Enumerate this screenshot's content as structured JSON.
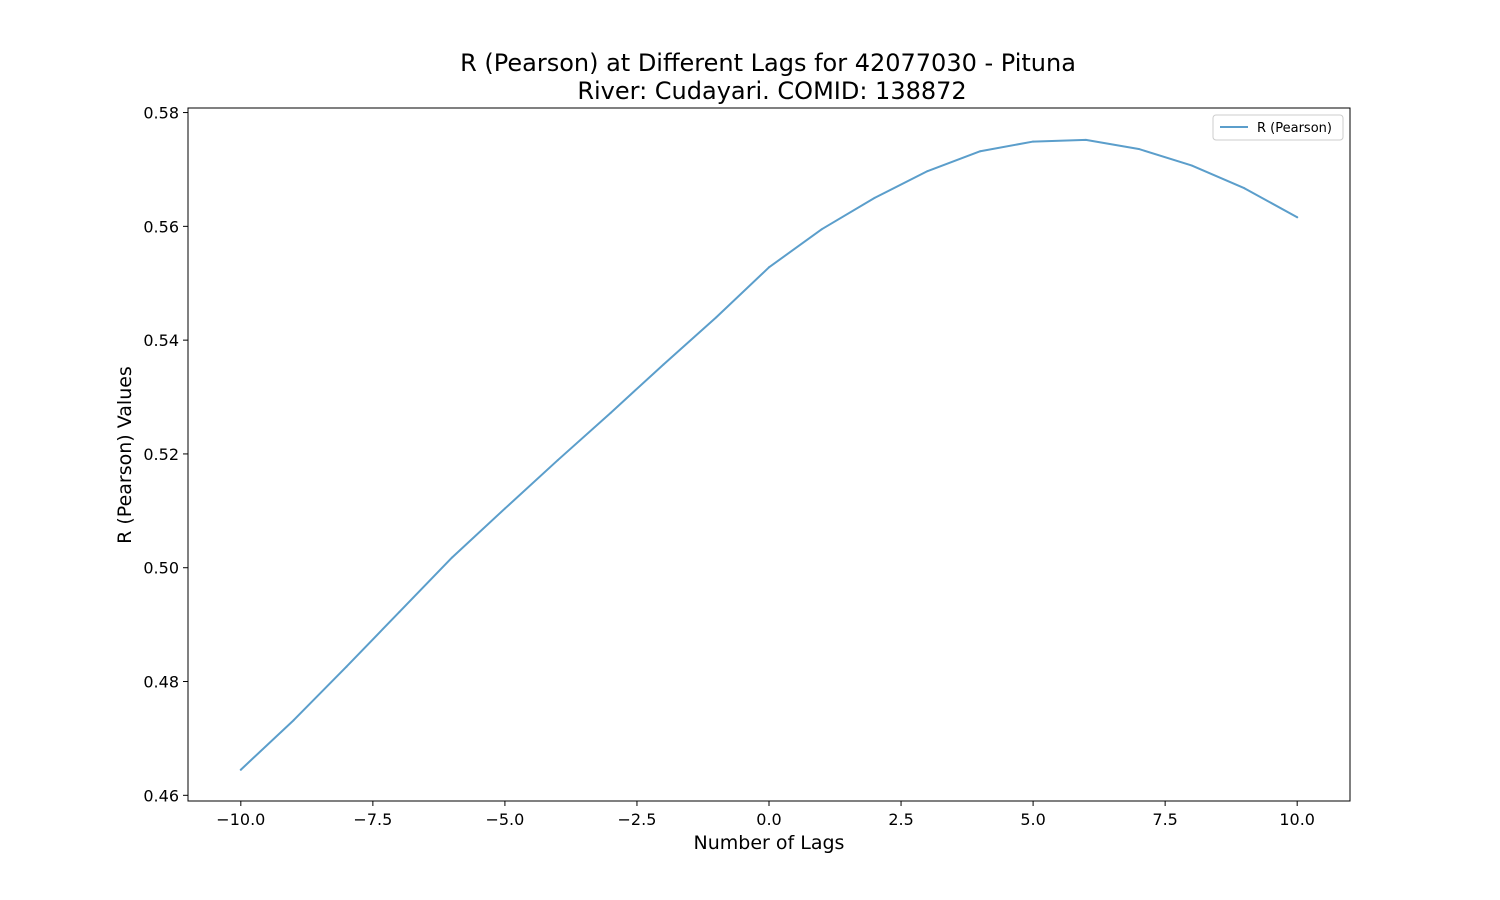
{
  "chart_data": {
    "type": "line",
    "title_line1": "R (Pearson) at Different Lags for 42077030 - Pituna",
    "title_line2": "River: Cudayari. COMID: 138872",
    "xlabel": "Number of Lags",
    "ylabel": "R (Pearson) Values",
    "xlim": [
      -11,
      11
    ],
    "ylim": [
      0.459,
      0.5808
    ],
    "x_ticks": [
      -10.0,
      -7.5,
      -5.0,
      -2.5,
      0.0,
      2.5,
      5.0,
      7.5,
      10.0
    ],
    "x_tick_labels": [
      "−10.0",
      "−7.5",
      "−5.0",
      "−2.5",
      "0.0",
      "2.5",
      "5.0",
      "7.5",
      "10.0"
    ],
    "y_ticks": [
      0.46,
      0.48,
      0.5,
      0.52,
      0.54,
      0.56,
      0.58
    ],
    "y_tick_labels": [
      "0.46",
      "0.48",
      "0.50",
      "0.52",
      "0.54",
      "0.56",
      "0.58"
    ],
    "grid": false,
    "legend_position": "top-right",
    "series": [
      {
        "name": "R (Pearson)",
        "color": "#5b9ecb",
        "x": [
          -10,
          -9,
          -8,
          -7,
          -6,
          -5,
          -4,
          -3,
          -2,
          -1,
          0,
          1,
          2,
          3,
          4,
          5,
          6,
          7,
          8,
          9,
          10
        ],
        "y": [
          0.4645,
          0.4732,
          0.4826,
          0.4922,
          0.5018,
          0.5104,
          0.5189,
          0.5272,
          0.5357,
          0.544,
          0.5528,
          0.5595,
          0.565,
          0.5697,
          0.5732,
          0.5749,
          0.5752,
          0.5736,
          0.5707,
          0.5667,
          0.5616
        ]
      }
    ]
  }
}
